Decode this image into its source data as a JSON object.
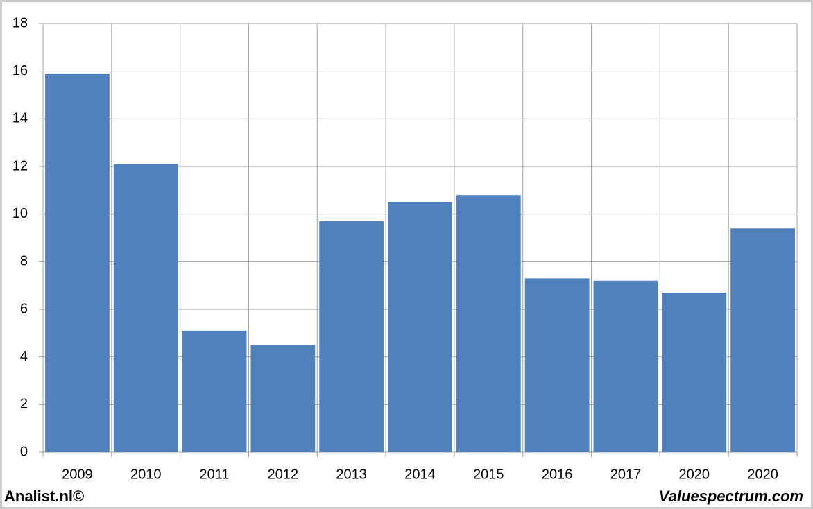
{
  "chart_data": {
    "type": "bar",
    "categories": [
      "2009",
      "2010",
      "2011",
      "2012",
      "2013",
      "2014",
      "2015",
      "2016",
      "2017",
      "2020",
      "2020"
    ],
    "values": [
      15.9,
      12.1,
      5.1,
      4.5,
      9.7,
      10.5,
      10.8,
      7.3,
      7.2,
      6.7,
      9.4
    ],
    "color": "#4f81bd",
    "ylim": [
      0,
      18
    ],
    "yticks": [
      0,
      2,
      4,
      6,
      8,
      10,
      12,
      14,
      16,
      18
    ],
    "grid": true,
    "footer_left": "Analist.nl©",
    "footer_right": "Valuespectrum.com"
  }
}
